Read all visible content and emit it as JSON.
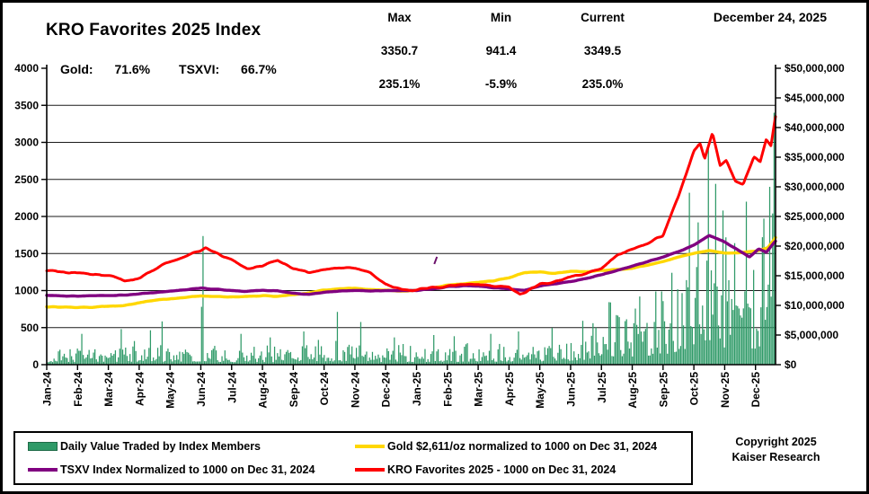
{
  "header": {
    "title": "KRO Favorites 2025 Index",
    "gold_label": "Gold:",
    "gold_pct": "71.6%",
    "tsxvi_label": "TSXVI:",
    "tsxvi_pct": "66.7%",
    "date": "December 24, 2025",
    "stats": {
      "columns": [
        {
          "label": "Max",
          "value": "3350.7",
          "pct": "235.1%"
        },
        {
          "label": "Min",
          "value": "941.4",
          "pct": "-5.9%"
        },
        {
          "label": "Current",
          "value": "3349.5",
          "pct": "235.0%"
        }
      ]
    }
  },
  "legend": {
    "items": [
      {
        "label": "Daily Value Traded by Index Members",
        "series": 0
      },
      {
        "label": "Gold $2,611/oz normalized to 1000 on Dec 31, 2024",
        "series": 1
      },
      {
        "label": "TSXV Index Normalized to 1000 on Dec 31, 2024",
        "series": 2
      },
      {
        "label": "KRO Favorites 2025 - 1000 on Dec 31, 2024",
        "series": 3
      }
    ]
  },
  "footer": {
    "copyright_line1": "Copyright 2025",
    "copyright_line2": "Kaiser Research"
  },
  "chart_data": {
    "type": "composite",
    "x_axis": {
      "span_months": 23.65,
      "tick_every_months": 1,
      "months": [
        "Jan-24",
        "Feb-24",
        "Mar-24",
        "Apr-24",
        "May-24",
        "Jun-24",
        "Jul-24",
        "Aug-24",
        "Sep-24",
        "Oct-24",
        "Nov-24",
        "Dec-24",
        "Jan-25",
        "Feb-25",
        "Mar-25",
        "Apr-25",
        "May-25",
        "Jun-25",
        "Jul-25",
        "Aug-25",
        "Sep-25",
        "Oct-25",
        "Nov-25",
        "Dec-25"
      ]
    },
    "y_left": {
      "min": 0,
      "max": 4000,
      "step": 500
    },
    "y_right": {
      "min": 0,
      "max": 50000000,
      "step": 5000000,
      "format": "$#,##0"
    },
    "grid": "horizontal-only",
    "stray_mark": {
      "t": 12.62,
      "value": 1407
    },
    "series": [
      {
        "name": "Daily Value Traded by Index Members",
        "type": "bar",
        "axis": "right",
        "color": "#2f9a68",
        "units": "USD_millions",
        "envelope": [
          [
            0,
            2.5
          ],
          [
            1,
            3.0
          ],
          [
            2,
            2.8
          ],
          [
            3,
            3.2
          ],
          [
            4,
            3.0
          ],
          [
            5,
            3.2
          ],
          [
            6,
            2.6
          ],
          [
            7,
            2.6
          ],
          [
            8,
            2.8
          ],
          [
            9,
            3.4
          ],
          [
            10,
            3.2
          ],
          [
            11,
            2.6
          ],
          [
            12,
            2.8
          ],
          [
            13,
            2.8
          ],
          [
            14,
            3.0
          ],
          [
            15,
            3.2
          ],
          [
            16,
            3.4
          ],
          [
            17,
            4.2
          ],
          [
            17.5,
            5.2
          ],
          [
            18,
            7.5
          ],
          [
            18.5,
            9.0
          ],
          [
            19,
            8.5
          ],
          [
            19.5,
            9.5
          ],
          [
            20,
            10.5
          ],
          [
            20.5,
            14.0
          ],
          [
            21,
            20.0
          ],
          [
            21.5,
            26.0
          ],
          [
            22,
            18.0
          ],
          [
            22.5,
            15.0
          ],
          [
            23,
            17.0
          ],
          [
            23.5,
            21.0
          ],
          [
            23.65,
            25.0
          ]
        ],
        "spikes": [
          [
            1.15,
            5.2
          ],
          [
            2.4,
            6.0
          ],
          [
            3.35,
            5.8
          ],
          [
            3.75,
            7.3
          ],
          [
            5.05,
            21.7
          ],
          [
            6.3,
            5.2
          ],
          [
            7.25,
            4.6
          ],
          [
            8.35,
            5.6
          ],
          [
            9.45,
            8.9
          ],
          [
            10.2,
            7.2
          ],
          [
            11.3,
            4.6
          ],
          [
            12.55,
            5.0
          ],
          [
            13.2,
            4.8
          ],
          [
            14.4,
            5.2
          ],
          [
            15.3,
            5.6
          ],
          [
            16.4,
            6.2
          ],
          [
            17.4,
            7.4
          ],
          [
            18.3,
            10.5
          ],
          [
            19.25,
            11.5
          ],
          [
            20.3,
            15.5
          ],
          [
            20.85,
            29.0
          ],
          [
            21.15,
            24.0
          ],
          [
            21.45,
            37.5
          ],
          [
            21.7,
            30.5
          ],
          [
            21.95,
            26.0
          ],
          [
            22.3,
            20.5
          ],
          [
            22.7,
            27.5
          ],
          [
            23.2,
            21.5
          ],
          [
            23.45,
            30.0
          ],
          [
            23.56,
            25.5
          ],
          [
            23.6,
            42.5
          ]
        ]
      },
      {
        "name": "Gold $2,611/oz normalized to 1000 on Dec 31, 2024",
        "type": "line",
        "axis": "left",
        "color": "#ffd700",
        "stroke_width": 3.4,
        "anchors": [
          [
            0,
            782
          ],
          [
            0.5,
            776
          ],
          [
            1,
            771
          ],
          [
            1.5,
            776
          ],
          [
            2,
            788
          ],
          [
            2.5,
            801
          ],
          [
            3,
            832
          ],
          [
            3.5,
            868
          ],
          [
            4,
            892
          ],
          [
            4.5,
            908
          ],
          [
            5,
            930
          ],
          [
            5.5,
            918
          ],
          [
            6,
            914
          ],
          [
            6.5,
            921
          ],
          [
            7,
            930
          ],
          [
            7.5,
            924
          ],
          [
            8,
            941
          ],
          [
            8.5,
            968
          ],
          [
            9,
            1005
          ],
          [
            9.5,
            1022
          ],
          [
            10,
            1032
          ],
          [
            10.5,
            1012
          ],
          [
            11,
            1005
          ],
          [
            11.5,
            992
          ],
          [
            12,
            1002
          ],
          [
            12.5,
            1032
          ],
          [
            13,
            1072
          ],
          [
            13.5,
            1092
          ],
          [
            14,
            1112
          ],
          [
            14.5,
            1132
          ],
          [
            15,
            1172
          ],
          [
            15.5,
            1242
          ],
          [
            16,
            1252
          ],
          [
            16.5,
            1232
          ],
          [
            17,
            1262
          ],
          [
            17.5,
            1252
          ],
          [
            18,
            1272
          ],
          [
            18.5,
            1282
          ],
          [
            19,
            1302
          ],
          [
            19.5,
            1342
          ],
          [
            20,
            1392
          ],
          [
            20.5,
            1452
          ],
          [
            21,
            1502
          ],
          [
            21.5,
            1542
          ],
          [
            22,
            1502
          ],
          [
            22.5,
            1512
          ],
          [
            23,
            1532
          ],
          [
            23.4,
            1572
          ],
          [
            23.65,
            1716
          ]
        ]
      },
      {
        "name": "TSXV Index Normalized to 1000 on Dec 31, 2024",
        "type": "line",
        "axis": "left",
        "color": "#800080",
        "stroke_width": 3.4,
        "anchors": [
          [
            0,
            936
          ],
          [
            0.5,
            930
          ],
          [
            1,
            926
          ],
          [
            1.5,
            930
          ],
          [
            2,
            934
          ],
          [
            2.5,
            940
          ],
          [
            3,
            952
          ],
          [
            3.5,
            972
          ],
          [
            4,
            992
          ],
          [
            4.5,
            1012
          ],
          [
            5,
            1032
          ],
          [
            5.5,
            1018
          ],
          [
            6,
            1000
          ],
          [
            6.5,
            990
          ],
          [
            7,
            1002
          ],
          [
            7.5,
            994
          ],
          [
            8,
            962
          ],
          [
            8.5,
            950
          ],
          [
            9,
            976
          ],
          [
            9.5,
            992
          ],
          [
            10,
            1002
          ],
          [
            10.5,
            996
          ],
          [
            11,
            1000
          ],
          [
            11.5,
            996
          ],
          [
            12,
            1002
          ],
          [
            12.5,
            1022
          ],
          [
            13,
            1052
          ],
          [
            13.5,
            1062
          ],
          [
            14,
            1060
          ],
          [
            14.5,
            1040
          ],
          [
            15,
            1018
          ],
          [
            15.5,
            1002
          ],
          [
            16,
            1062
          ],
          [
            16.5,
            1092
          ],
          [
            17,
            1122
          ],
          [
            17.5,
            1162
          ],
          [
            18,
            1212
          ],
          [
            18.5,
            1272
          ],
          [
            19,
            1332
          ],
          [
            19.5,
            1392
          ],
          [
            20,
            1452
          ],
          [
            20.5,
            1525
          ],
          [
            21,
            1615
          ],
          [
            21.5,
            1742
          ],
          [
            22,
            1655
          ],
          [
            22.5,
            1528
          ],
          [
            22.8,
            1455
          ],
          [
            23.1,
            1560
          ],
          [
            23.35,
            1522
          ],
          [
            23.65,
            1667
          ]
        ]
      },
      {
        "name": "KRO Favorites 2025 - 1000 on Dec 31, 2024",
        "type": "line",
        "axis": "left",
        "color": "#ff0000",
        "stroke_width": 3.0,
        "anchors": [
          [
            0,
            1265
          ],
          [
            0.5,
            1248
          ],
          [
            1,
            1232
          ],
          [
            1.5,
            1222
          ],
          [
            2,
            1205
          ],
          [
            2.5,
            1138
          ],
          [
            3,
            1165
          ],
          [
            3.5,
            1285
          ],
          [
            4,
            1390
          ],
          [
            4.5,
            1470
          ],
          [
            5,
            1550
          ],
          [
            5.15,
            1580
          ],
          [
            5.5,
            1500
          ],
          [
            6,
            1420
          ],
          [
            6.5,
            1295
          ],
          [
            7,
            1330
          ],
          [
            7.5,
            1408
          ],
          [
            8,
            1300
          ],
          [
            8.5,
            1245
          ],
          [
            9,
            1285
          ],
          [
            9.5,
            1312
          ],
          [
            10,
            1298
          ],
          [
            10.5,
            1232
          ],
          [
            11,
            1078
          ],
          [
            11.5,
            1018
          ],
          [
            12,
            1002
          ],
          [
            12.5,
            1042
          ],
          [
            13,
            1065
          ],
          [
            13.5,
            1080
          ],
          [
            14,
            1092
          ],
          [
            14.5,
            1068
          ],
          [
            15,
            1052
          ],
          [
            15.35,
            943
          ],
          [
            15.7,
            1012
          ],
          [
            16,
            1088
          ],
          [
            16.5,
            1128
          ],
          [
            17,
            1180
          ],
          [
            17.5,
            1232
          ],
          [
            18,
            1302
          ],
          [
            18.5,
            1475
          ],
          [
            19,
            1560
          ],
          [
            19.5,
            1642
          ],
          [
            20,
            1738
          ],
          [
            20.5,
            2280
          ],
          [
            21,
            2880
          ],
          [
            21.2,
            2985
          ],
          [
            21.35,
            2770
          ],
          [
            21.6,
            3130
          ],
          [
            21.85,
            2690
          ],
          [
            22.05,
            2760
          ],
          [
            22.35,
            2480
          ],
          [
            22.6,
            2432
          ],
          [
            22.95,
            2800
          ],
          [
            23.15,
            2725
          ],
          [
            23.35,
            3040
          ],
          [
            23.5,
            2955
          ],
          [
            23.65,
            3349.5
          ]
        ]
      }
    ]
  }
}
